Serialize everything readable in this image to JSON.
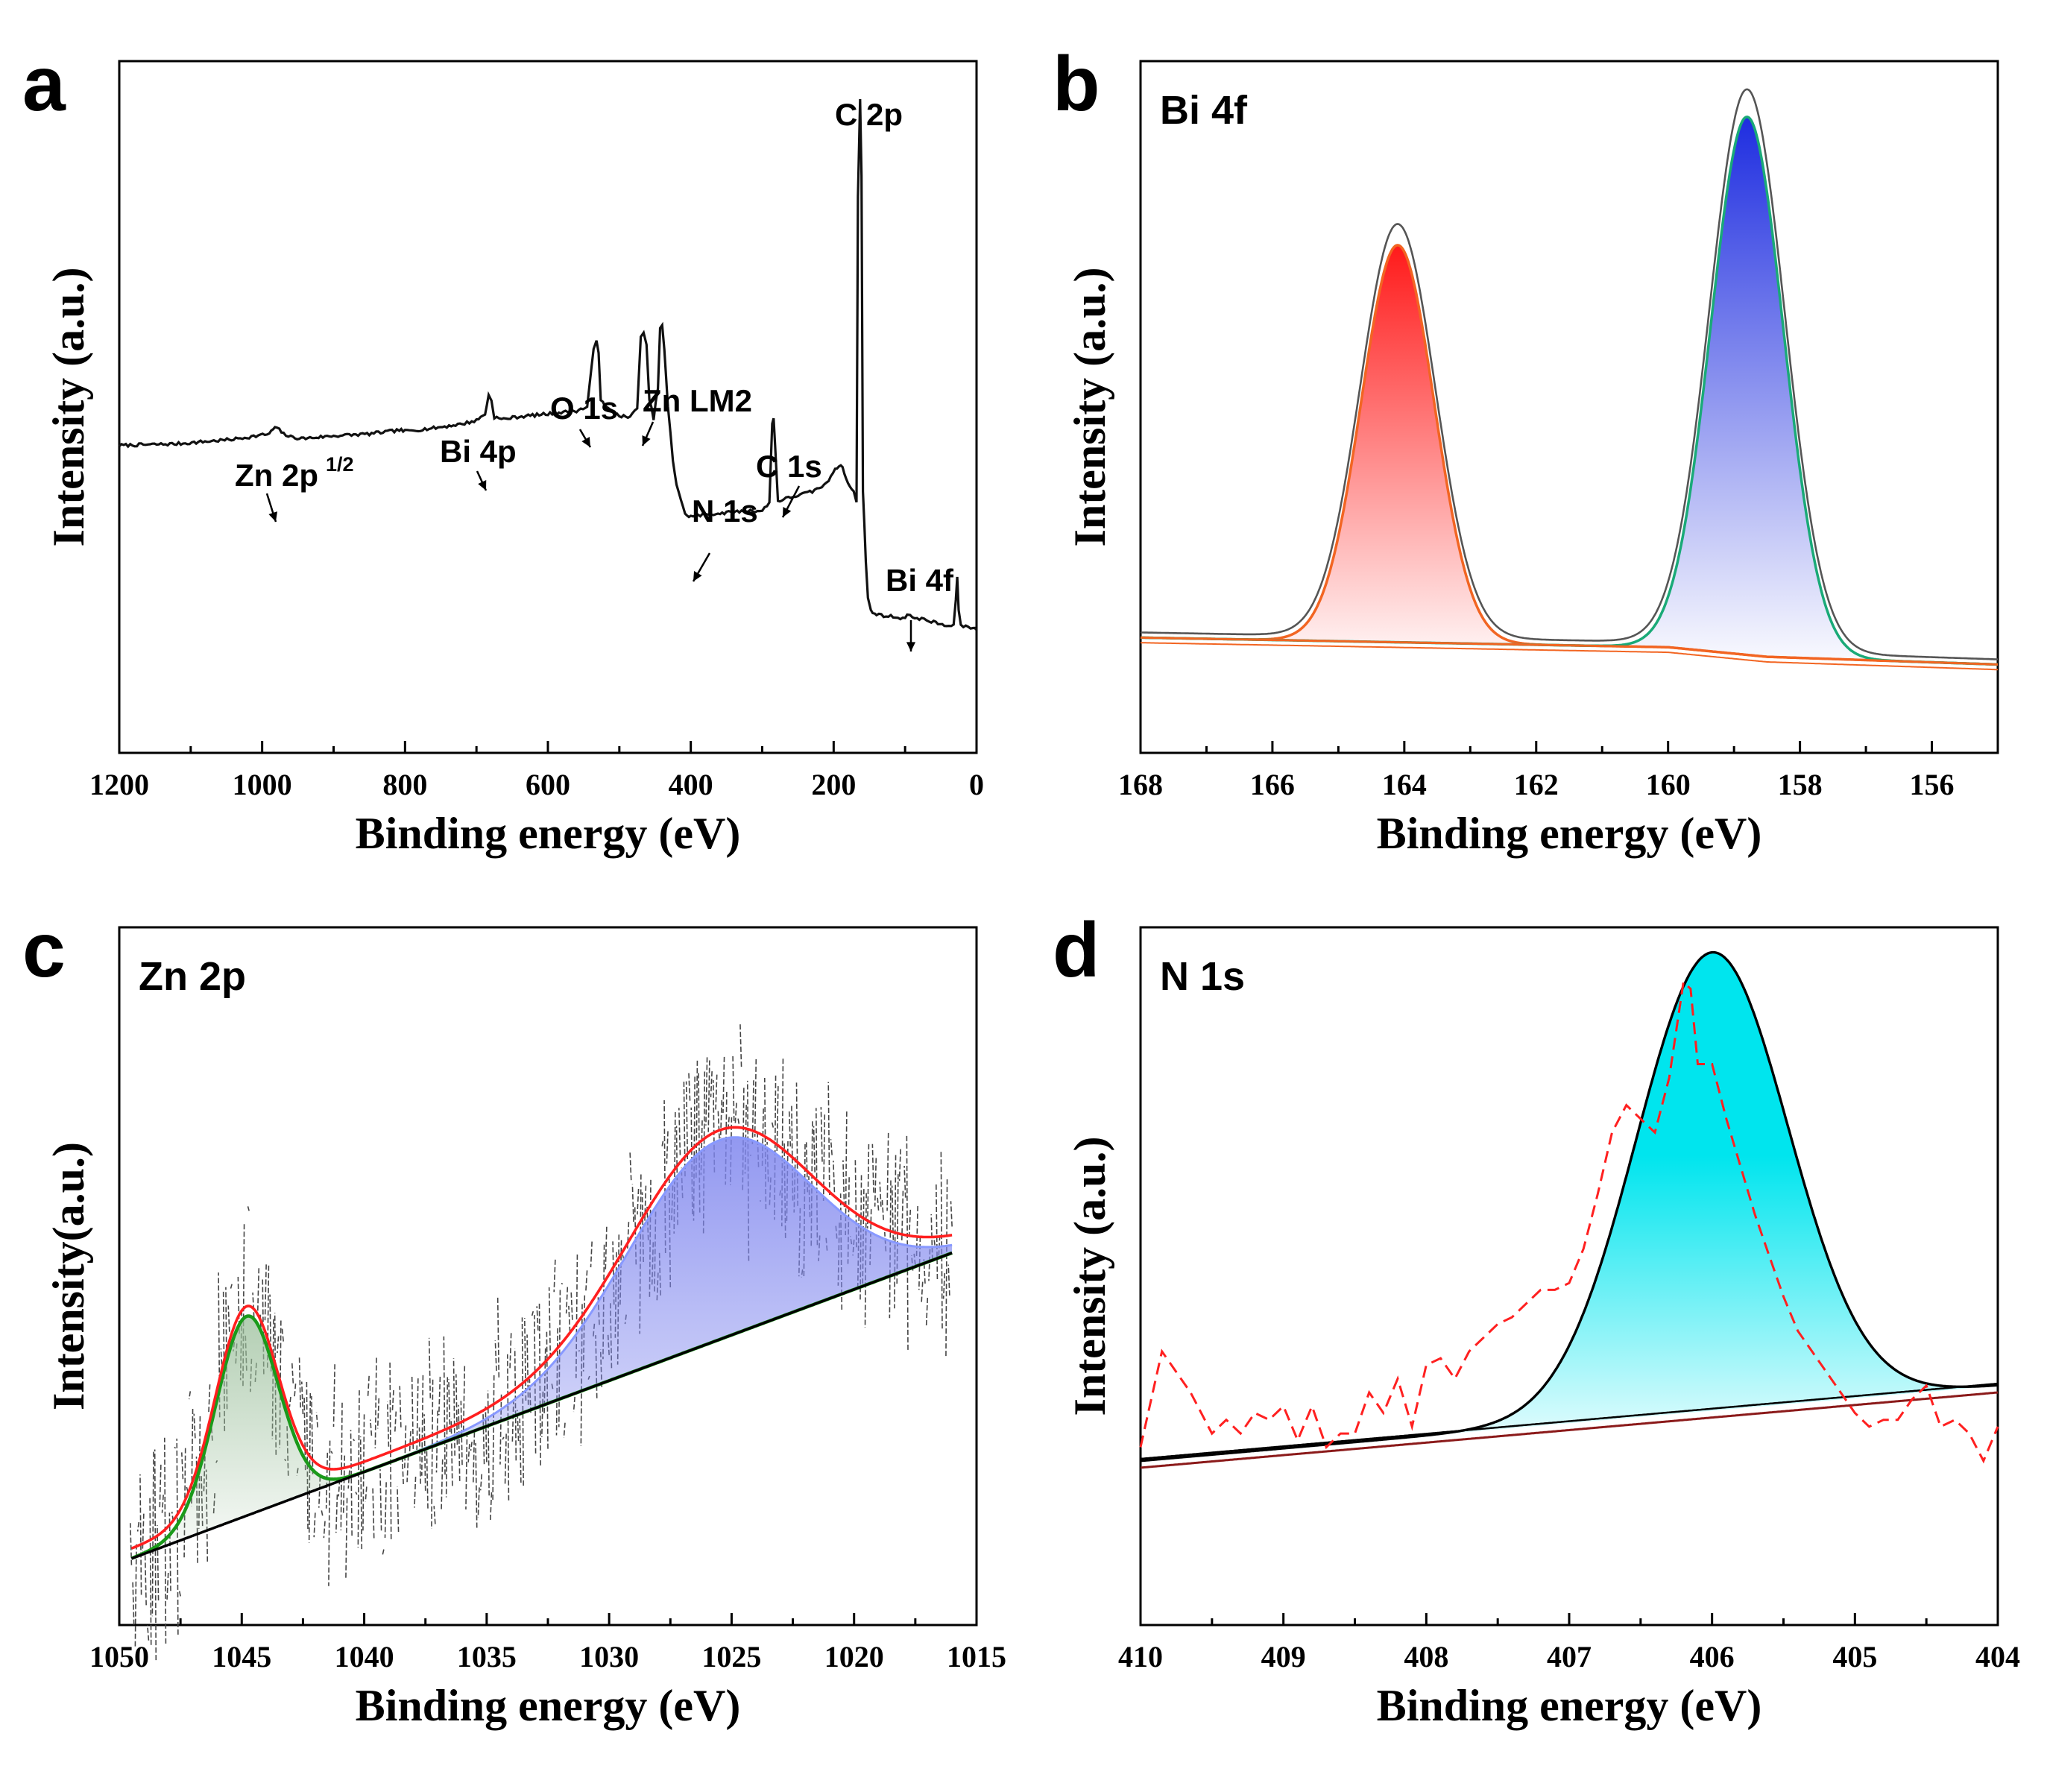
{
  "colors": {
    "axis": "#000000",
    "spectrum": "#111111",
    "bi_left_fill": "#ff1a1a",
    "bi_left_line": "#f26522",
    "bi_right_fill": "#1e2de0",
    "bi_right_line": "#1aaa78",
    "bi_envelope": "#555555",
    "zn_envelope": "#ff1f1f",
    "zn_peak_line": "#1a9a1a",
    "zn_peak_fill": "#9bbf9b",
    "zn_broad_fill": "#7f86ee",
    "zn_broad_line": "#8899ff",
    "zn_background": "#000000",
    "n_fill": "#00e5ee",
    "n_data": "#ff2020",
    "n_background": "#8b1a1a"
  },
  "chart_data": [
    {
      "panel_label": "a",
      "type": "line",
      "title": "",
      "xlabel": "Binding energy (eV)",
      "ylabel": "Intensity (a.u.)",
      "xlim": [
        1200,
        0
      ],
      "x_reversed": true,
      "x_ticks": [
        1200,
        1000,
        800,
        600,
        400,
        200,
        0
      ],
      "y_ticks": false,
      "series": [
        {
          "x": [
            1200,
            1120,
            1040,
            990,
            982,
            976,
            970,
            960,
            945,
            930,
            900,
            850,
            815,
            808,
            800,
            760,
            720,
            700,
            688,
            683,
            679,
            675,
            665,
            640,
            600,
            560,
            545,
            536,
            532,
            529,
            526,
            520,
            500,
            485,
            475,
            470,
            466,
            462,
            458,
            452,
            446,
            443,
            440,
            437,
            432,
            425,
            420,
            408,
            400,
            380,
            350,
            320,
            300,
            290,
            286,
            284,
            282,
            278,
            270,
            250,
            230,
            210,
            198,
            190,
            185,
            180,
            172,
            168,
            166,
            163,
            161,
            159,
            157,
            155,
            152,
            148,
            140,
            120,
            100,
            97,
            93,
            80,
            60,
            42,
            32,
            29,
            27,
            25,
            22,
            15,
            5,
            0
          ],
          "y": [
            0.1,
            0.104,
            0.116,
            0.13,
            0.148,
            0.14,
            0.13,
            0.122,
            0.118,
            0.12,
            0.125,
            0.13,
            0.138,
            0.14,
            0.137,
            0.145,
            0.156,
            0.165,
            0.182,
            0.23,
            0.218,
            0.174,
            0.168,
            0.175,
            0.182,
            0.19,
            0.2,
            0.35,
            0.376,
            0.345,
            0.22,
            0.2,
            0.178,
            0.172,
            0.2,
            0.38,
            0.39,
            0.36,
            0.22,
            0.17,
            0.25,
            0.405,
            0.41,
            0.35,
            0.2,
            0.06,
            0.0,
            -0.08,
            -0.085,
            -0.08,
            -0.075,
            -0.07,
            -0.07,
            -0.05,
            0.16,
            0.17,
            0.1,
            -0.045,
            -0.04,
            -0.03,
            -0.02,
            0.0,
            0.04,
            0.05,
            0.03,
            0.0,
            -0.02,
            -0.05,
            0.75,
            1.0,
            0.8,
            -0.02,
            -0.1,
            -0.2,
            -0.3,
            -0.33,
            -0.34,
            -0.345,
            -0.35,
            -0.34,
            -0.345,
            -0.35,
            -0.36,
            -0.37,
            -0.37,
            -0.3,
            -0.24,
            -0.33,
            -0.37,
            -0.37,
            -0.375,
            -0.38
          ]
        }
      ],
      "annotations": [
        {
          "text": "C 2p",
          "x": 160
        },
        {
          "text": "Zn 2p",
          "superscript": "1/2",
          "x": 980
        },
        {
          "text": "Bi 4p",
          "x": 682
        },
        {
          "text": "O 1s",
          "x": 532
        },
        {
          "text": "Zn LM2",
          "x": 465
        },
        {
          "text": "N 1s",
          "x": 400
        },
        {
          "text": "C 1s",
          "x": 285
        },
        {
          "text": "Bi 4f",
          "x": 95
        }
      ]
    },
    {
      "panel_label": "b",
      "type": "area",
      "title": "Bi 4f",
      "xlabel": "Binding energy (eV)",
      "ylabel": "Intensity (a.u.)",
      "xlim": [
        168,
        155
      ],
      "x_reversed": true,
      "x_ticks": [
        168,
        166,
        164,
        162,
        160,
        158,
        156
      ],
      "y_ticks": false,
      "series": [
        {
          "type": "gaussian",
          "center": 164.1,
          "height": 0.62,
          "fwhm": 1.3
        },
        {
          "type": "gaussian",
          "center": 158.8,
          "height": 0.84,
          "fwhm": 1.3
        },
        {
          "type": "baseline",
          "x": [
            168,
            160,
            158.5,
            155
          ],
          "y": [
            0.1,
            0.085,
            0.07,
            0.058
          ]
        },
        {
          "type": "envelope",
          "peak_heights": [
            0.645,
            0.875
          ]
        }
      ]
    },
    {
      "panel_label": "c",
      "type": "area",
      "title": "Zn 2p",
      "xlabel": "Binding energy (eV)",
      "ylabel": "Intensity(a.u.)",
      "xlim": [
        1050,
        1015
      ],
      "x_reversed": true,
      "x_ticks": [
        1050,
        1045,
        1040,
        1035,
        1030,
        1025,
        1020,
        1015
      ],
      "y_ticks": false,
      "series": [
        {
          "type": "gaussian",
          "center": 1044.8,
          "height": 0.3,
          "fwhm": 3.0
        },
        {
          "type": "gaussian",
          "center": 1025.5,
          "height": 0.3,
          "fwhm": 8.8
        },
        {
          "type": "baseline",
          "x": [
            1049.5,
            1016
          ],
          "y": [
            0.05,
            0.51
          ]
        },
        {
          "type": "envelope",
          "range": [
            1049.5,
            1016
          ]
        },
        {
          "type": "noisy_data",
          "range": [
            1049.5,
            1016
          ]
        }
      ]
    },
    {
      "panel_label": "d",
      "type": "area",
      "title": "N 1s",
      "xlabel": "Binding energy (eV)",
      "ylabel": "Intensity (a.u.)",
      "xlim": [
        410,
        404
      ],
      "x_reversed": true,
      "x_ticks": [
        410,
        409,
        408,
        407,
        406,
        405,
        404
      ],
      "y_ticks": false,
      "series": [
        {
          "type": "gaussian",
          "center": 406.0,
          "height": 0.67,
          "fwhm": 1.25
        },
        {
          "type": "baseline",
          "x": [
            410,
            404
          ],
          "y": [
            0.24,
            0.35
          ]
        },
        {
          "type": "data_dashed",
          "x": [
            410.0,
            409.85,
            409.75,
            409.65,
            409.5,
            409.4,
            409.3,
            409.2,
            409.1,
            409.0,
            408.9,
            408.8,
            408.7,
            408.6,
            408.5,
            408.4,
            408.3,
            408.2,
            408.1,
            408.0,
            407.9,
            407.8,
            407.7,
            407.6,
            407.5,
            407.4,
            407.3,
            407.2,
            407.1,
            407.0,
            406.9,
            406.8,
            406.7,
            406.6,
            406.5,
            406.4,
            406.3,
            406.2,
            406.15,
            406.1,
            406.0,
            405.9,
            405.8,
            405.7,
            405.6,
            405.5,
            405.4,
            405.3,
            405.2,
            405.1,
            405.0,
            404.9,
            404.8,
            404.7,
            404.6,
            404.5,
            404.4,
            404.3,
            404.2,
            404.1,
            404.0
          ],
          "y": [
            0.26,
            0.4,
            0.37,
            0.34,
            0.28,
            0.3,
            0.28,
            0.31,
            0.3,
            0.32,
            0.27,
            0.32,
            0.26,
            0.28,
            0.28,
            0.34,
            0.31,
            0.36,
            0.29,
            0.38,
            0.39,
            0.36,
            0.4,
            0.42,
            0.44,
            0.45,
            0.47,
            0.49,
            0.49,
            0.5,
            0.55,
            0.63,
            0.72,
            0.76,
            0.74,
            0.72,
            0.8,
            0.94,
            0.93,
            0.82,
            0.82,
            0.74,
            0.67,
            0.6,
            0.54,
            0.48,
            0.43,
            0.4,
            0.37,
            0.34,
            0.31,
            0.29,
            0.3,
            0.3,
            0.33,
            0.35,
            0.29,
            0.3,
            0.28,
            0.24,
            0.29
          ]
        }
      ]
    }
  ]
}
